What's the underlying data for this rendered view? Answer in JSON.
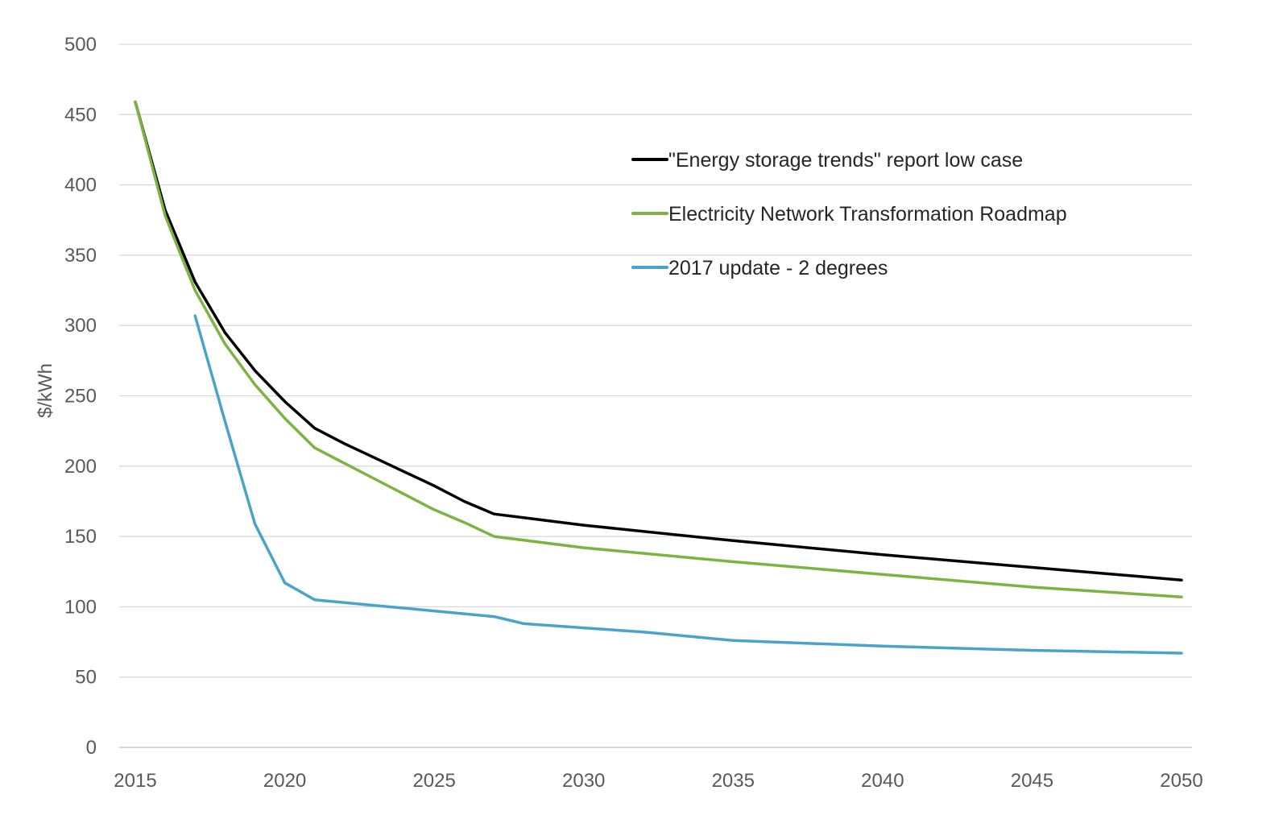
{
  "chart_data": {
    "type": "line",
    "title": "",
    "xlabel": "",
    "ylabel": "$/kWh",
    "xlim": [
      2015,
      2050
    ],
    "ylim": [
      0,
      500
    ],
    "x_ticks": [
      2015,
      2020,
      2025,
      2030,
      2035,
      2040,
      2045,
      2050
    ],
    "y_ticks": [
      0,
      50,
      100,
      150,
      200,
      250,
      300,
      350,
      400,
      450,
      500
    ],
    "grid": "horizontal",
    "legend_position": "top-right",
    "series": [
      {
        "name": "\"Energy storage trends\" report low case",
        "color": "#000000",
        "x": [
          2015,
          2016,
          2017,
          2018,
          2019,
          2020,
          2021,
          2022,
          2023,
          2024,
          2025,
          2026,
          2027,
          2030,
          2035,
          2040,
          2045,
          2050
        ],
        "y": [
          459,
          382,
          331,
          295,
          268,
          246,
          227,
          216,
          206,
          196,
          186,
          175,
          166,
          158,
          147,
          137,
          128,
          119
        ]
      },
      {
        "name": "Electricity Network Transformation Roadmap",
        "color": "#7cb342",
        "x": [
          2015,
          2016,
          2017,
          2018,
          2019,
          2020,
          2021,
          2022,
          2023,
          2024,
          2025,
          2026,
          2027,
          2030,
          2035,
          2040,
          2045,
          2050
        ],
        "y": [
          459,
          378,
          325,
          287,
          258,
          234,
          213,
          202,
          191,
          180,
          169,
          160,
          150,
          142,
          132,
          123,
          114,
          107
        ]
      },
      {
        "name": "2017 update - 2 degrees",
        "color": "#4ba3cc",
        "x": [
          2017,
          2018,
          2019,
          2020,
          2021,
          2022,
          2023,
          2024,
          2025,
          2026,
          2027,
          2028,
          2030,
          2032,
          2035,
          2040,
          2045,
          2050
        ],
        "y": [
          307,
          232,
          159,
          117,
          105,
          103,
          101,
          99,
          97,
          95,
          93,
          88,
          85,
          82,
          76,
          72,
          69,
          67
        ]
      }
    ]
  }
}
